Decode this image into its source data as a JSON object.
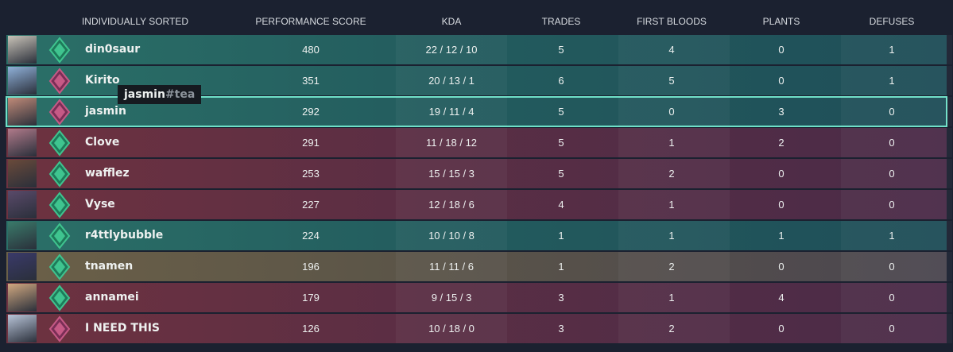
{
  "header": {
    "title": "INDIVIDUALLY SORTED",
    "columns": [
      "PERFORMANCE SCORE",
      "KDA",
      "TRADES",
      "FIRST BLOODS",
      "PLANTS",
      "DEFUSES"
    ]
  },
  "rows": [
    {
      "name": "din0saur",
      "score": 480,
      "kda": "22 / 12 / 10",
      "trades": 5,
      "first_bloods": 4,
      "plants": 0,
      "defuses": 1
    },
    {
      "name": "Kirito",
      "score": 351,
      "kda": "20 / 13 / 1",
      "trades": 6,
      "first_bloods": 5,
      "plants": 0,
      "defuses": 1
    },
    {
      "name": "jasmin",
      "score": 292,
      "kda": "19 / 11 / 4",
      "trades": 5,
      "first_bloods": 0,
      "plants": 3,
      "defuses": 0
    },
    {
      "name": "Clove",
      "score": 291,
      "kda": "11 / 18 / 12",
      "trades": 5,
      "first_bloods": 1,
      "plants": 2,
      "defuses": 0
    },
    {
      "name": "wafflez",
      "score": 253,
      "kda": "15 / 15 / 3",
      "trades": 5,
      "first_bloods": 2,
      "plants": 0,
      "defuses": 0
    },
    {
      "name": "Vyse",
      "score": 227,
      "kda": "12 / 18 / 6",
      "trades": 4,
      "first_bloods": 1,
      "plants": 0,
      "defuses": 0
    },
    {
      "name": "r4ttlybubble",
      "score": 224,
      "kda": "10 / 10 / 8",
      "trades": 1,
      "first_bloods": 1,
      "plants": 1,
      "defuses": 1
    },
    {
      "name": "tnamen",
      "score": 196,
      "kda": "11 / 11 / 6",
      "trades": 1,
      "first_bloods": 2,
      "plants": 0,
      "defuses": 0
    },
    {
      "name": "annamei",
      "score": 179,
      "kda": "9 / 15 / 3",
      "trades": 3,
      "first_bloods": 1,
      "plants": 4,
      "defuses": 0
    },
    {
      "name": "I NEED THIS",
      "score": 126,
      "kda": "10 / 18 / 0",
      "trades": 3,
      "first_bloods": 2,
      "plants": 0,
      "defuses": 0
    }
  ],
  "tooltip": {
    "name": "jasmin",
    "tag": "#tea"
  }
}
